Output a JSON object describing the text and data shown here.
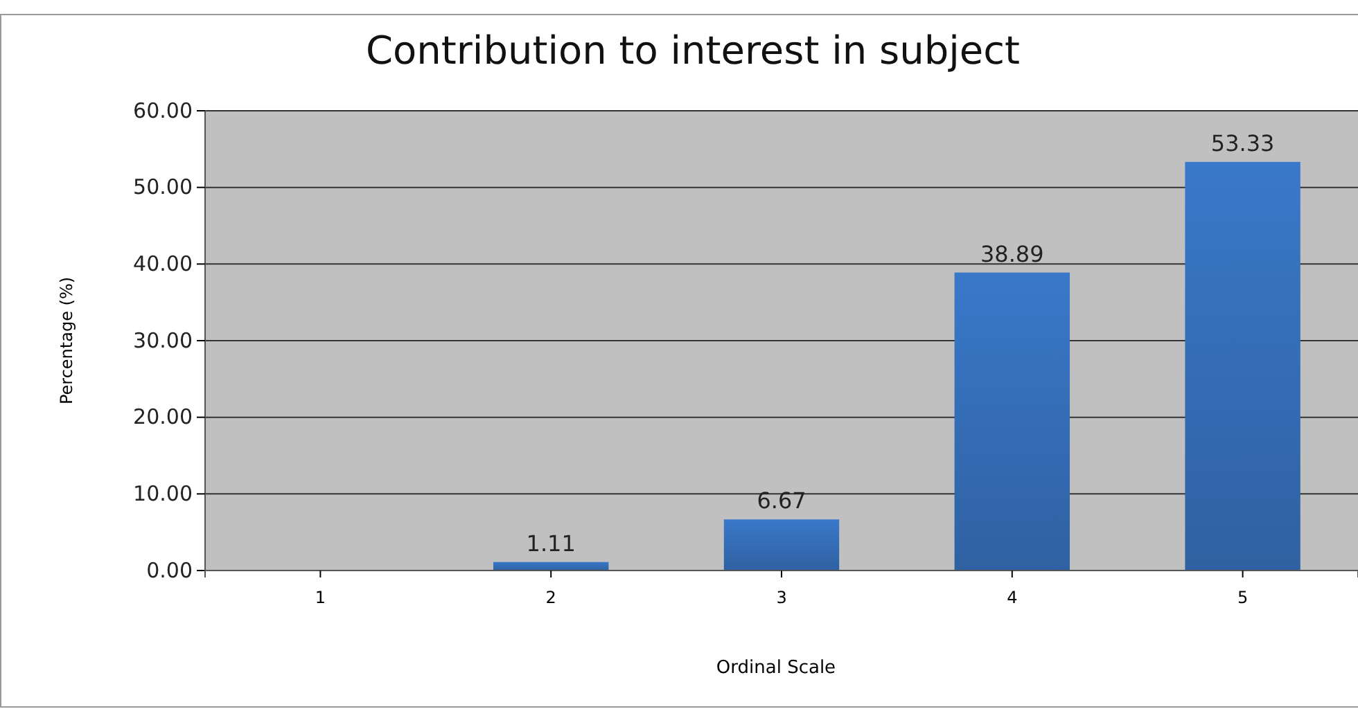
{
  "chart_data": {
    "type": "bar",
    "title": "Contribution to interest in subject",
    "xlabel": "Ordinal Scale",
    "ylabel": "Percentage (%)",
    "categories": [
      "1",
      "2",
      "3",
      "4",
      "5"
    ],
    "values": [
      0,
      1.11,
      6.67,
      38.89,
      53.33
    ],
    "value_labels": [
      null,
      "1.11",
      "6.67",
      "38.89",
      "53.33"
    ],
    "color": "#3a78c9",
    "ylim": [
      0,
      60
    ],
    "yticks": [
      {
        "value": 0,
        "label": "0.00"
      },
      {
        "value": 10,
        "label": "10.00"
      },
      {
        "value": 20,
        "label": "20.00"
      },
      {
        "value": 30,
        "label": "30.00"
      },
      {
        "value": 40,
        "label": "40.00"
      },
      {
        "value": 50,
        "label": "50.00"
      },
      {
        "value": 60,
        "label": "60.00"
      }
    ],
    "grid": "y"
  }
}
